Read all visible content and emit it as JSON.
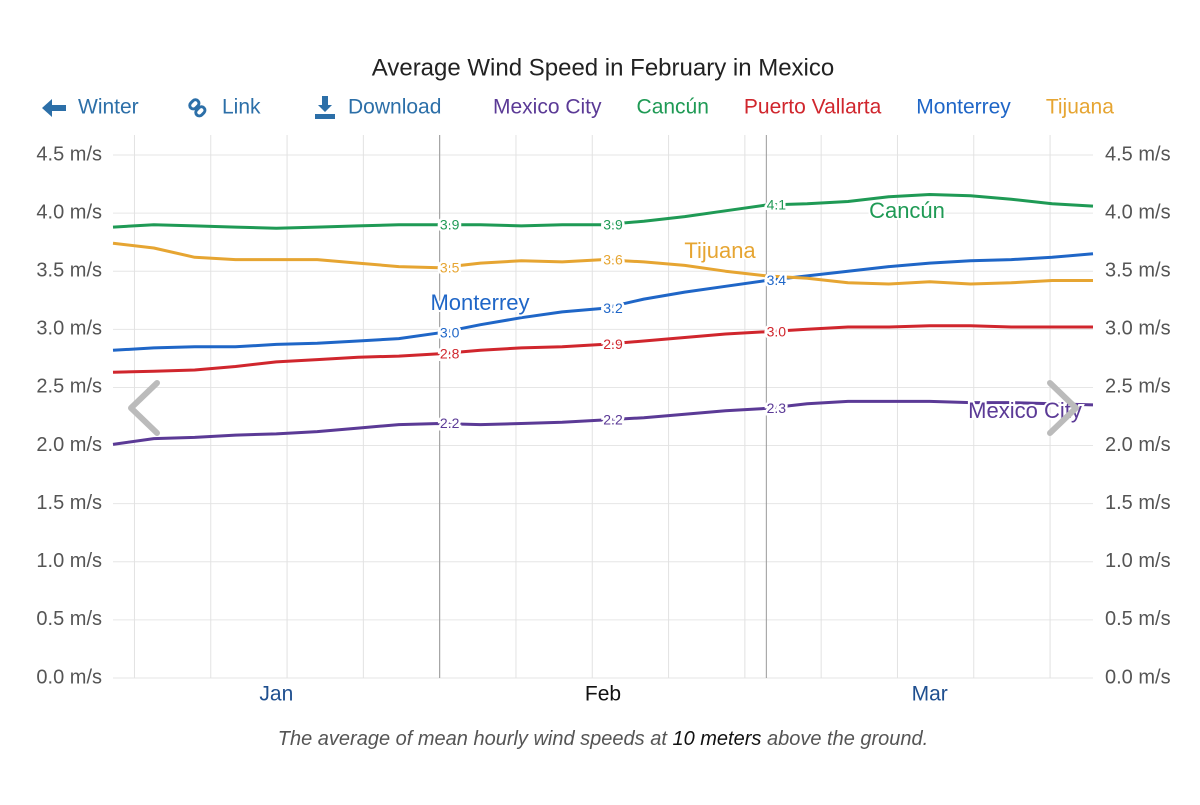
{
  "chart_data": {
    "type": "line",
    "title": "Average Wind Speed in February in Mexico",
    "nav": [
      "Winter",
      "Link",
      "Download"
    ],
    "caption": [
      "The average of mean hourly wind speeds at ",
      "10 meters",
      " above the ground."
    ],
    "months": [
      "Jan",
      "Feb",
      "Mar"
    ],
    "ylim": [
      0,
      4.5
    ],
    "yticks": [
      {
        "value": 0,
        "label": "0.0 m/s"
      },
      {
        "value": 0.5,
        "label": "0.5 m/s"
      },
      {
        "value": 1,
        "label": "1.0 m/s"
      },
      {
        "value": 1.5,
        "label": "1.5 m/s"
      },
      {
        "value": 2,
        "label": "2.0 m/s"
      },
      {
        "value": 2.5,
        "label": "2.5 m/s"
      },
      {
        "value": 3,
        "label": "3.0 m/s"
      },
      {
        "value": 3.5,
        "label": "3.5 m/s"
      },
      {
        "value": 4,
        "label": "4.0 m/s"
      },
      {
        "value": 4.5,
        "label": "4.5 m/s"
      }
    ],
    "grid": true,
    "series": [
      {
        "name": "Mexico City",
        "color": "#5b3a96",
        "values": [
          2.01,
          2.06,
          2.07,
          2.09,
          2.1,
          2.12,
          2.15,
          2.18,
          2.19,
          2.18,
          2.19,
          2.2,
          2.22,
          2.24,
          2.27,
          2.3,
          2.32,
          2.36,
          2.38,
          2.38,
          2.38,
          2.37,
          2.37,
          2.36,
          2.35
        ],
        "value_labels": [
          null,
          null,
          null,
          null,
          null,
          null,
          null,
          null,
          "2.2",
          null,
          null,
          null,
          "2.2",
          null,
          null,
          null,
          "2.3",
          null,
          null,
          null,
          null,
          null,
          null,
          null,
          null
        ]
      },
      {
        "name": "Cancún",
        "color": "#1f9a55",
        "values": [
          3.88,
          3.9,
          3.89,
          3.88,
          3.87,
          3.88,
          3.89,
          3.9,
          3.9,
          3.9,
          3.89,
          3.9,
          3.9,
          3.93,
          3.97,
          4.02,
          4.07,
          4.08,
          4.1,
          4.14,
          4.16,
          4.15,
          4.12,
          4.08,
          4.06
        ],
        "value_labels": [
          null,
          null,
          null,
          null,
          null,
          null,
          null,
          null,
          "3.9",
          null,
          null,
          null,
          "3.9",
          null,
          null,
          null,
          "4.1",
          null,
          null,
          null,
          null,
          null,
          null,
          null,
          null
        ]
      },
      {
        "name": "Puerto Vallarta",
        "color": "#d0262d",
        "values": [
          2.63,
          2.64,
          2.65,
          2.68,
          2.72,
          2.74,
          2.76,
          2.77,
          2.79,
          2.82,
          2.84,
          2.85,
          2.87,
          2.9,
          2.93,
          2.96,
          2.98,
          3.0,
          3.02,
          3.02,
          3.03,
          3.03,
          3.02,
          3.02,
          3.02
        ],
        "value_labels": [
          null,
          null,
          null,
          null,
          null,
          null,
          null,
          null,
          "2.8",
          null,
          null,
          null,
          "2.9",
          null,
          null,
          null,
          "3.0",
          null,
          null,
          null,
          null,
          null,
          null,
          null,
          null
        ]
      },
      {
        "name": "Monterrey",
        "color": "#1f66c7",
        "values": [
          2.82,
          2.84,
          2.85,
          2.85,
          2.87,
          2.88,
          2.9,
          2.92,
          2.97,
          3.04,
          3.1,
          3.15,
          3.18,
          3.26,
          3.32,
          3.37,
          3.42,
          3.46,
          3.5,
          3.54,
          3.57,
          3.59,
          3.6,
          3.62,
          3.65
        ],
        "value_labels": [
          null,
          null,
          null,
          null,
          null,
          null,
          null,
          null,
          "3.0",
          null,
          null,
          null,
          "3.2",
          null,
          null,
          null,
          "3.4",
          null,
          null,
          null,
          null,
          null,
          null,
          null,
          null
        ]
      },
      {
        "name": "Tijuana",
        "color": "#e6a532",
        "values": [
          3.74,
          3.7,
          3.62,
          3.6,
          3.6,
          3.6,
          3.57,
          3.54,
          3.53,
          3.57,
          3.59,
          3.58,
          3.6,
          3.58,
          3.55,
          3.5,
          3.46,
          3.44,
          3.4,
          3.39,
          3.41,
          3.39,
          3.4,
          3.42,
          3.42
        ],
        "value_labels": [
          null,
          null,
          null,
          null,
          null,
          null,
          null,
          null,
          "3.5",
          null,
          null,
          null,
          "3.6",
          null,
          null,
          null,
          null,
          null,
          null,
          null,
          null,
          null,
          null,
          null,
          null
        ]
      }
    ]
  }
}
